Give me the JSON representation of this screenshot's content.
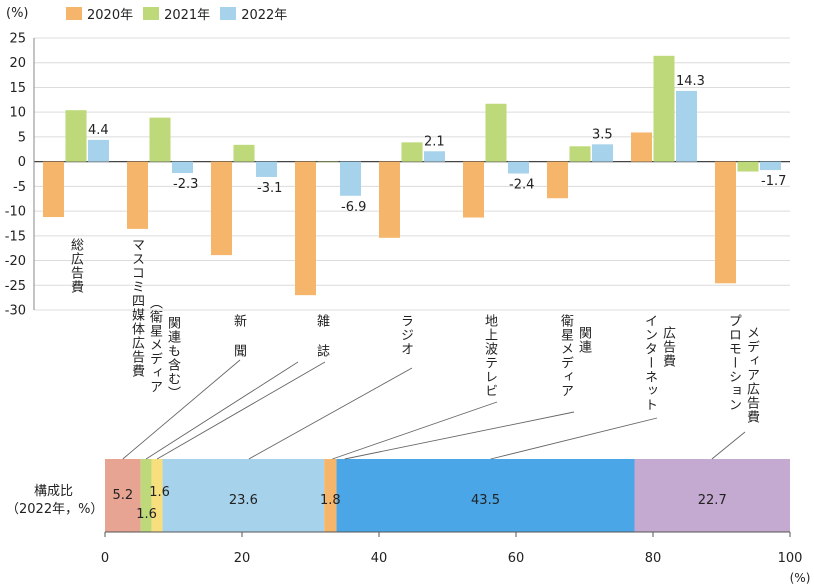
{
  "chart_data": [
    {
      "type": "bar",
      "unit_label": "(%)",
      "ylim": [
        -30,
        25
      ],
      "yticks": [
        25,
        20,
        15,
        10,
        5,
        0,
        -5,
        -10,
        -15,
        -20,
        -25,
        -30
      ],
      "categories": [
        {
          "lines": [
            "総広告費"
          ]
        },
        {
          "lines": [
            "マスコミ四媒体広告費",
            "（衛星メディア",
            "関連も含む）"
          ]
        },
        {
          "lines": [
            "新",
            "聞"
          ]
        },
        {
          "lines": [
            "雑",
            "誌"
          ]
        },
        {
          "lines": [
            "ラジオ"
          ]
        },
        {
          "lines": [
            "地上波テレビ"
          ]
        },
        {
          "lines": [
            "衛星メディア",
            "関連"
          ]
        },
        {
          "lines": [
            "インターネット",
            "広告費"
          ]
        },
        {
          "lines": [
            "プロモーション",
            "メディア広告費"
          ]
        }
      ],
      "series": [
        {
          "name": "2020年",
          "color": "#f5b56b",
          "values": [
            -11.2,
            -13.6,
            -18.9,
            -27.0,
            -15.4,
            -11.3,
            -7.4,
            5.9,
            -24.6
          ]
        },
        {
          "name": "2021年",
          "color": "#bdd97a",
          "values": [
            10.4,
            8.9,
            3.4,
            0.0,
            3.9,
            11.7,
            3.1,
            21.4,
            -2.0
          ]
        },
        {
          "name": "2022年",
          "color": "#a7d2ec",
          "values": [
            4.4,
            -2.3,
            -3.1,
            -6.9,
            2.1,
            -2.4,
            3.5,
            14.3,
            -1.7
          ]
        }
      ],
      "labels_2022": [
        "4.4",
        "-2.3",
        "-3.1",
        "-6.9",
        "2.1",
        "-2.4",
        "3.5",
        "14.3",
        "-1.7"
      ]
    },
    {
      "type": "stacked-bar",
      "label": [
        "構成比",
        "（2022年，%）"
      ],
      "xlim": [
        0,
        100
      ],
      "xticks": [
        0,
        20,
        40,
        60,
        80,
        100
      ],
      "xunit": "(%)",
      "segments": [
        {
          "value": 5.2,
          "label": "5.2",
          "color": "#e8a493"
        },
        {
          "value": 1.6,
          "label": "1.6",
          "color": "#bdd97a"
        },
        {
          "value": 1.6,
          "label": "1.6",
          "color": "#f7df7e"
        },
        {
          "value": 23.6,
          "label": "23.6",
          "color": "#a7d2ec"
        },
        {
          "value": 1.8,
          "label": "1.8",
          "color": "#f5b56b"
        },
        {
          "value": 43.5,
          "label": "43.5",
          "color": "#4aa6e6"
        },
        {
          "value": 22.7,
          "label": "22.7",
          "color": "#c4a9d0"
        }
      ]
    }
  ]
}
